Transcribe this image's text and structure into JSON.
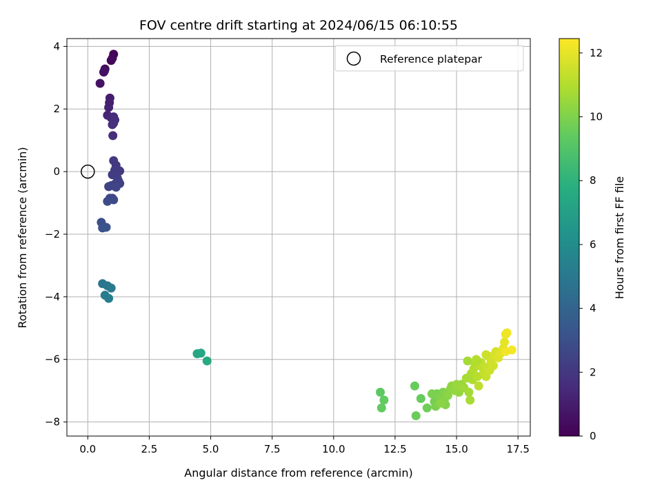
{
  "chart_data": {
    "type": "scatter",
    "title": "FOV centre drift starting at 2024/06/15 06:10:55",
    "xlabel": "Angular distance from reference (arcmin)",
    "ylabel": "Rotation from reference (arcmin)",
    "xlim": [
      -0.85,
      18.0
    ],
    "ylim": [
      -8.45,
      4.25
    ],
    "xticks": [
      0.0,
      2.5,
      5.0,
      7.5,
      10.0,
      12.5,
      15.0,
      17.5
    ],
    "xtick_labels": [
      "0.0",
      "2.5",
      "5.0",
      "7.5",
      "10.0",
      "12.5",
      "15.0",
      "17.5"
    ],
    "yticks": [
      -8,
      -6,
      -4,
      -2,
      0,
      2,
      4
    ],
    "ytick_labels": [
      "−8",
      "−6",
      "−4",
      "−2",
      "0",
      "2",
      "4"
    ],
    "grid": true,
    "legend": {
      "placement": "top-right",
      "entries": [
        "Reference platepar"
      ]
    },
    "reference_point": {
      "x": 0.0,
      "y": 0.0
    },
    "colorbar": {
      "label": "Hours from first FF file",
      "colormap": "viridis",
      "range": [
        0,
        12.45
      ],
      "ticks": [
        0,
        2,
        4,
        6,
        8,
        10,
        12
      ],
      "tick_labels": [
        "0",
        "2",
        "4",
        "6",
        "8",
        "10",
        "12"
      ]
    },
    "points": [
      [
        1.05,
        3.75,
        0.1
      ],
      [
        0.95,
        3.55,
        0.2
      ],
      [
        1.0,
        3.62,
        0.3
      ],
      [
        0.7,
        3.28,
        0.4
      ],
      [
        0.65,
        3.18,
        0.5
      ],
      [
        0.68,
        3.22,
        0.55
      ],
      [
        0.5,
        2.82,
        0.6
      ],
      [
        0.9,
        2.35,
        1.0
      ],
      [
        0.88,
        2.2,
        1.1
      ],
      [
        0.85,
        2.05,
        1.2
      ],
      [
        0.8,
        1.8,
        1.3
      ],
      [
        0.95,
        1.72,
        1.4
      ],
      [
        1.05,
        1.75,
        1.5
      ],
      [
        1.1,
        1.65,
        1.55
      ],
      [
        1.0,
        1.5,
        1.6
      ],
      [
        1.05,
        1.55,
        1.65
      ],
      [
        1.02,
        1.15,
        1.7
      ],
      [
        1.05,
        0.35,
        2.0
      ],
      [
        1.15,
        0.2,
        2.05
      ],
      [
        1.1,
        0.05,
        2.1
      ],
      [
        1.3,
        0.02,
        2.15
      ],
      [
        1.0,
        -0.1,
        2.2
      ],
      [
        1.2,
        -0.2,
        2.25
      ],
      [
        1.25,
        -0.3,
        2.3
      ],
      [
        1.3,
        -0.38,
        2.35
      ],
      [
        1.1,
        -0.4,
        2.4
      ],
      [
        0.95,
        -0.45,
        2.45
      ],
      [
        0.85,
        -0.48,
        2.5
      ],
      [
        1.15,
        -0.5,
        2.55
      ],
      [
        1.0,
        -0.85,
        2.6
      ],
      [
        0.9,
        -0.85,
        2.7
      ],
      [
        1.05,
        -0.9,
        2.75
      ],
      [
        0.8,
        -0.95,
        2.8
      ],
      [
        0.55,
        -1.62,
        3.0
      ],
      [
        0.6,
        -1.8,
        3.1
      ],
      [
        0.75,
        -1.78,
        3.2
      ],
      [
        0.6,
        -3.58,
        4.8
      ],
      [
        0.8,
        -3.65,
        4.9
      ],
      [
        0.95,
        -3.72,
        5.0
      ],
      [
        0.7,
        -3.95,
        5.1
      ],
      [
        0.85,
        -4.05,
        5.2
      ],
      [
        4.45,
        -5.82,
        7.3
      ],
      [
        4.6,
        -5.8,
        7.4
      ],
      [
        4.85,
        -6.05,
        7.5
      ],
      [
        11.9,
        -7.05,
        9.3
      ],
      [
        12.05,
        -7.3,
        9.4
      ],
      [
        11.95,
        -7.55,
        9.4
      ],
      [
        13.3,
        -6.85,
        9.5
      ],
      [
        13.55,
        -7.25,
        9.5
      ],
      [
        13.35,
        -7.8,
        9.6
      ],
      [
        13.8,
        -7.55,
        9.7
      ],
      [
        14.1,
        -7.35,
        9.8
      ],
      [
        14.2,
        -7.1,
        9.8
      ],
      [
        14.0,
        -7.1,
        9.9
      ],
      [
        14.15,
        -7.5,
        9.9
      ],
      [
        14.3,
        -7.2,
        10.0
      ],
      [
        14.45,
        -7.05,
        10.0
      ],
      [
        14.5,
        -7.3,
        10.1
      ],
      [
        14.55,
        -7.45,
        10.1
      ],
      [
        14.35,
        -7.4,
        10.2
      ],
      [
        14.65,
        -7.15,
        10.2
      ],
      [
        14.75,
        -6.95,
        10.3
      ],
      [
        14.8,
        -6.85,
        10.3
      ],
      [
        14.95,
        -7.0,
        10.4
      ],
      [
        15.1,
        -7.05,
        10.4
      ],
      [
        15.0,
        -6.8,
        10.5
      ],
      [
        15.2,
        -6.8,
        10.5
      ],
      [
        15.3,
        -6.9,
        10.6
      ],
      [
        15.45,
        -6.05,
        10.7
      ],
      [
        15.5,
        -7.05,
        10.7
      ],
      [
        15.55,
        -7.3,
        10.8
      ],
      [
        15.4,
        -6.6,
        10.8
      ],
      [
        15.6,
        -6.45,
        10.9
      ],
      [
        15.65,
        -6.65,
        10.9
      ],
      [
        15.7,
        -6.3,
        11.0
      ],
      [
        15.75,
        -6.15,
        11.0
      ],
      [
        15.8,
        -6.0,
        11.1
      ],
      [
        15.85,
        -6.55,
        11.1
      ],
      [
        15.9,
        -6.85,
        11.2
      ],
      [
        15.95,
        -6.2,
        11.2
      ],
      [
        16.0,
        -6.1,
        11.3
      ],
      [
        16.1,
        -6.4,
        11.3
      ],
      [
        16.2,
        -6.55,
        11.4
      ],
      [
        16.25,
        -6.25,
        11.4
      ],
      [
        16.2,
        -5.85,
        11.5
      ],
      [
        16.3,
        -5.9,
        11.5
      ],
      [
        16.4,
        -6.05,
        11.6
      ],
      [
        16.5,
        -6.2,
        11.6
      ],
      [
        16.55,
        -5.85,
        11.7
      ],
      [
        16.6,
        -5.75,
        11.7
      ],
      [
        16.7,
        -5.95,
        11.8
      ],
      [
        16.8,
        -5.8,
        11.9
      ],
      [
        16.9,
        -5.65,
        11.9
      ],
      [
        16.95,
        -5.45,
        12.0
      ],
      [
        17.0,
        -5.2,
        12.1
      ],
      [
        17.05,
        -5.15,
        12.2
      ],
      [
        17.25,
        -5.7,
        12.3
      ],
      [
        17.0,
        -5.75,
        12.2
      ],
      [
        15.85,
        -6.05,
        11.0
      ],
      [
        16.35,
        -6.35,
        11.5
      ]
    ]
  }
}
